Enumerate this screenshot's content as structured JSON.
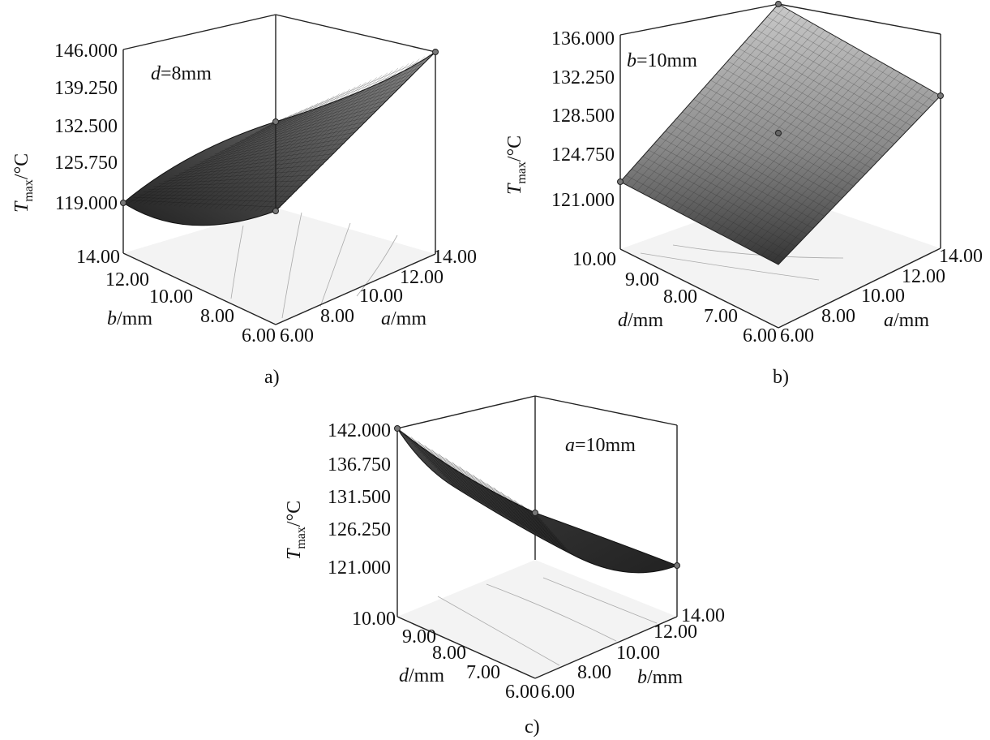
{
  "chart_data": [
    {
      "type": "surface",
      "panel": "a)",
      "annotation_prefix": "d",
      "annotation_suffix": "=8mm",
      "zlabel_main": "T",
      "zlabel_sub": "max",
      "zlabel_unit": "/°C",
      "x_var": "b",
      "x_unit": "/mm",
      "y_var": "a",
      "y_unit": "/mm",
      "zticks": [
        "146.000",
        "139.250",
        "132.500",
        "125.750",
        "119.000"
      ],
      "xticks": [
        "14.00",
        "12.00",
        "10.00",
        "8.00",
        "6.00"
      ],
      "yticks": [
        "6.00",
        "8.00",
        "10.00",
        "12.00",
        "14.00"
      ],
      "zlim": [
        119.0,
        146.0
      ],
      "xlim": [
        6.0,
        14.0
      ],
      "ylim": [
        6.0,
        14.0
      ],
      "corners": [
        {
          "b": 6.0,
          "a": 6.0,
          "T": 119.0
        },
        {
          "b": 14.0,
          "a": 6.0,
          "T": 119.0
        },
        {
          "b": 6.0,
          "a": 14.0,
          "T": 146.0
        },
        {
          "b": 14.0,
          "a": 14.0,
          "T": 133.0
        }
      ]
    },
    {
      "type": "surface",
      "panel": "b)",
      "annotation_prefix": "b",
      "annotation_suffix": "=10mm",
      "zlabel_main": "T",
      "zlabel_sub": "max",
      "zlabel_unit": "/°C",
      "x_var": "d",
      "x_unit": "/mm",
      "y_var": "a",
      "y_unit": "/mm",
      "zticks": [
        "136.000",
        "132.250",
        "128.500",
        "124.750",
        "121.000"
      ],
      "xticks": [
        "10.00",
        "9.00",
        "8.00",
        "7.00",
        "6.00"
      ],
      "yticks": [
        "6.00",
        "8.00",
        "10.00",
        "12.00",
        "14.00"
      ],
      "zlim": [
        121.0,
        136.0
      ],
      "xlim": [
        6.0,
        10.0
      ],
      "ylim": [
        6.0,
        14.0
      ],
      "corners": [
        {
          "d": 6.0,
          "a": 6.0,
          "T": 115.5
        },
        {
          "d": 10.0,
          "a": 6.0,
          "T": 123.0
        },
        {
          "d": 6.0,
          "a": 14.0,
          "T": 133.0
        },
        {
          "d": 10.0,
          "a": 14.0,
          "T": 140.0
        }
      ]
    },
    {
      "type": "surface",
      "panel": "c)",
      "annotation_prefix": "a",
      "annotation_suffix": "=10mm",
      "zlabel_main": "T",
      "zlabel_sub": "max",
      "zlabel_unit": "/°C",
      "x_var": "d",
      "x_unit": "/mm",
      "y_var": "b",
      "y_unit": "/mm",
      "zticks": [
        "142.000",
        "136.750",
        "131.500",
        "126.250",
        "121.000"
      ],
      "xticks": [
        "10.00",
        "9.00",
        "8.00",
        "7.00",
        "6.00"
      ],
      "yticks": [
        "6.00",
        "8.00",
        "10.00",
        "12.00",
        "14.00"
      ],
      "zlim": [
        121.0,
        142.0
      ],
      "xlim": [
        6.0,
        10.0
      ],
      "ylim": [
        6.0,
        14.0
      ],
      "corners": [
        {
          "d": 6.0,
          "b": 6.0,
          "T": 128.5
        },
        {
          "d": 10.0,
          "b": 6.0,
          "T": 142.0
        },
        {
          "d": 6.0,
          "b": 14.0,
          "T": 121.0
        },
        {
          "d": 10.0,
          "b": 14.0,
          "T": 129.0
        }
      ]
    }
  ]
}
